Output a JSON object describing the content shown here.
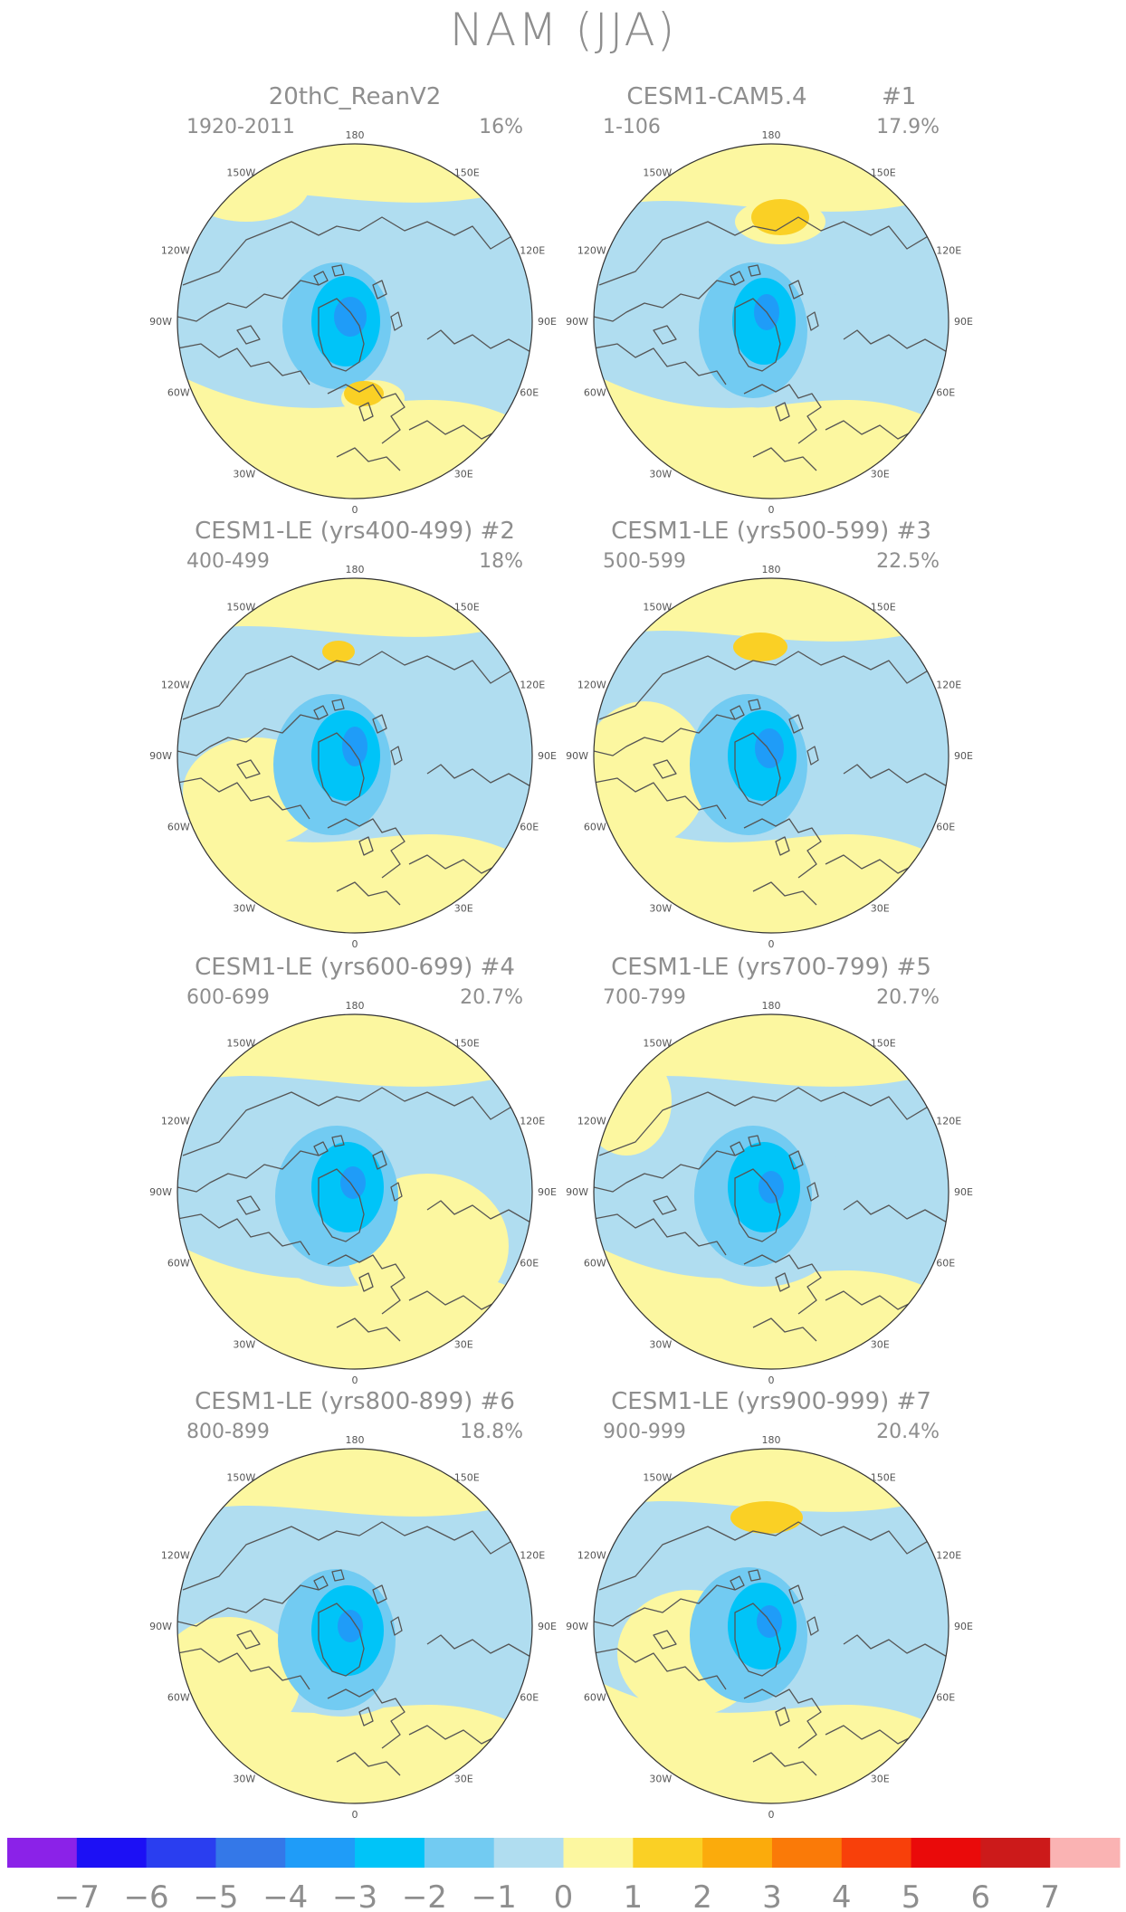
{
  "title": "NAM (JJA)",
  "panels": [
    {
      "title": "20thC_ReanV2",
      "period": "1920-2011",
      "percent": "16%",
      "member": ""
    },
    {
      "title": "CESM1-CAM5.4",
      "period": "1-106",
      "percent": "17.9%",
      "member": "#1"
    },
    {
      "title": "CESM1-LE (yrs400-499) #2",
      "period": "400-499",
      "percent": "18%",
      "member": ""
    },
    {
      "title": "CESM1-LE (yrs500-599) #3",
      "period": "500-599",
      "percent": "22.5%",
      "member": ""
    },
    {
      "title": "CESM1-LE (yrs600-699) #4",
      "period": "600-699",
      "percent": "20.7%",
      "member": ""
    },
    {
      "title": "CESM1-LE (yrs700-799) #5",
      "period": "700-799",
      "percent": "20.7%",
      "member": ""
    },
    {
      "title": "CESM1-LE (yrs800-899) #6",
      "period": "800-899",
      "percent": "18.8%",
      "member": ""
    },
    {
      "title": "CESM1-LE (yrs900-999) #7",
      "period": "900-999",
      "percent": "20.4%",
      "member": ""
    }
  ],
  "longitude_labels": [
    "180",
    "150W",
    "150E",
    "120W",
    "120E",
    "90W",
    "90E",
    "60W",
    "60E",
    "30W",
    "30E",
    "0"
  ],
  "colorbar": {
    "labels": [
      "−7",
      "−6",
      "−5",
      "−4",
      "−3",
      "−2",
      "−1",
      "0",
      "1",
      "2",
      "3",
      "4",
      "5",
      "6",
      "7"
    ],
    "colors": [
      "#8b22e8",
      "#1c10f5",
      "#2a3ef0",
      "#3478e8",
      "#1f9cf8",
      "#00c4f8",
      "#72cbf2",
      "#b0ddf0",
      "#fcf7a0",
      "#fad025",
      "#fbab0c",
      "#fa7a08",
      "#f8400a",
      "#ea0a0a",
      "#cc1a1a",
      "#fab3b3"
    ]
  }
}
